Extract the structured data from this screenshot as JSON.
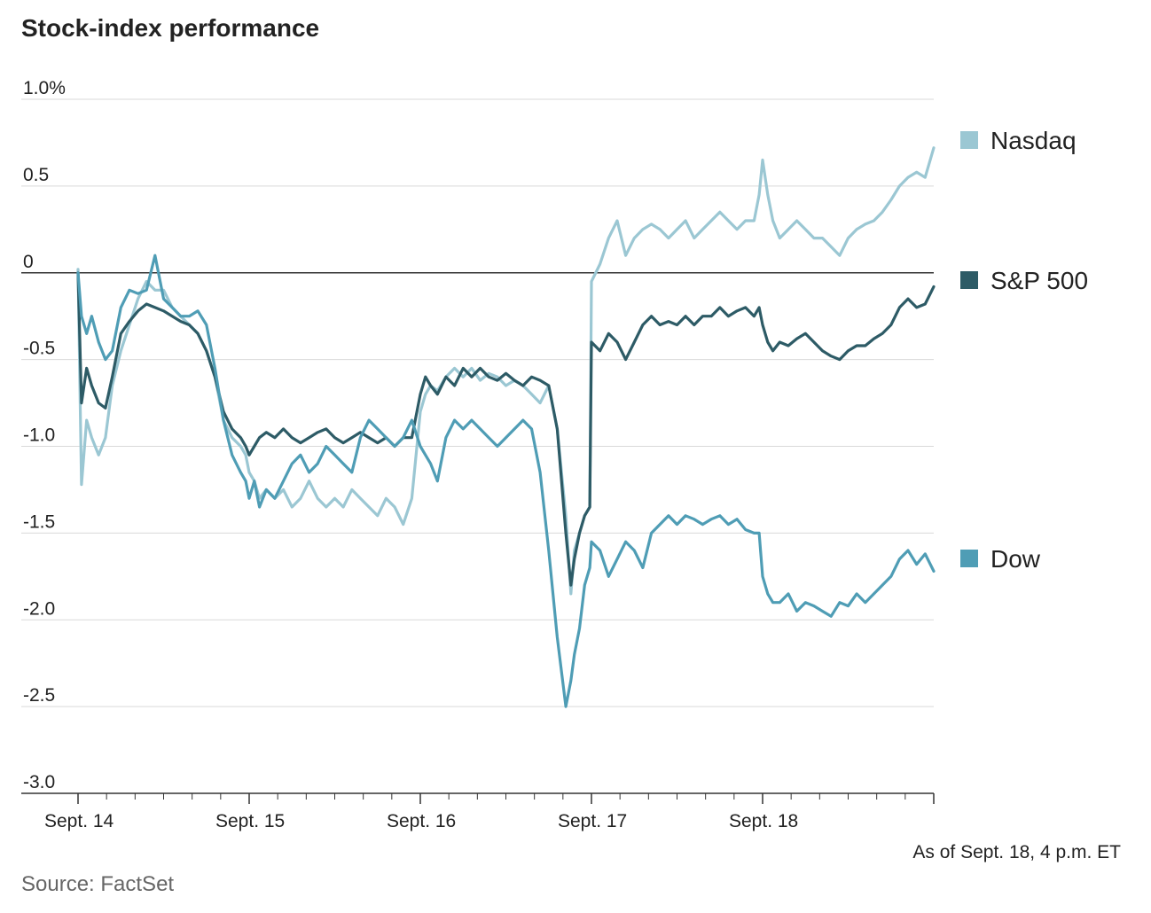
{
  "title": "Stock-index performance",
  "note": "As of Sept. 18, 4 p.m. ET",
  "source": "Source: FactSet",
  "chart_data": {
    "type": "line",
    "title": "Stock-index performance",
    "xlabel": "",
    "ylabel": "",
    "ylim": [
      -3.0,
      1.0
    ],
    "xlim": [
      0,
      5
    ],
    "y_ticks": [
      {
        "value": 1.0,
        "label": "1.0%"
      },
      {
        "value": 0.5,
        "label": "0.5"
      },
      {
        "value": 0,
        "label": "0"
      },
      {
        "value": -0.5,
        "label": "-0.5"
      },
      {
        "value": -1.0,
        "label": "-1.0"
      },
      {
        "value": -1.5,
        "label": "-1.5"
      },
      {
        "value": -2.0,
        "label": "-2.0"
      },
      {
        "value": -2.5,
        "label": "-2.5"
      },
      {
        "value": -3.0,
        "label": "-3.0"
      }
    ],
    "x_ticks": [
      {
        "value": 0,
        "label": "Sept. 14"
      },
      {
        "value": 1,
        "label": "Sept. 15"
      },
      {
        "value": 2,
        "label": "Sept. 16"
      },
      {
        "value": 3,
        "label": "Sept. 17"
      },
      {
        "value": 4,
        "label": "Sept. 18"
      }
    ],
    "grid": true,
    "legend_position": "right",
    "series": [
      {
        "name": "Nasdaq",
        "color": "#9bc7d3",
        "x": [
          0,
          0.02,
          0.05,
          0.08,
          0.12,
          0.16,
          0.2,
          0.25,
          0.3,
          0.35,
          0.4,
          0.45,
          0.5,
          0.55,
          0.6,
          0.65,
          0.7,
          0.75,
          0.8,
          0.85,
          0.9,
          0.95,
          0.98,
          1.0,
          1.03,
          1.06,
          1.1,
          1.15,
          1.2,
          1.25,
          1.3,
          1.35,
          1.4,
          1.45,
          1.5,
          1.55,
          1.6,
          1.65,
          1.7,
          1.75,
          1.8,
          1.85,
          1.9,
          1.95,
          2.0,
          2.03,
          2.06,
          2.1,
          2.15,
          2.2,
          2.25,
          2.3,
          2.35,
          2.4,
          2.45,
          2.5,
          2.55,
          2.6,
          2.65,
          2.7,
          2.75,
          2.8,
          2.85,
          2.88,
          2.9,
          2.93,
          2.96,
          2.99,
          3.0,
          3.05,
          3.1,
          3.15,
          3.2,
          3.25,
          3.3,
          3.35,
          3.4,
          3.45,
          3.5,
          3.55,
          3.6,
          3.65,
          3.7,
          3.75,
          3.8,
          3.85,
          3.9,
          3.95,
          3.98,
          4.0,
          4.03,
          4.06,
          4.1,
          4.15,
          4.2,
          4.25,
          4.3,
          4.35,
          4.4,
          4.45,
          4.5,
          4.55,
          4.6,
          4.65,
          4.7,
          4.75,
          4.8,
          4.85,
          4.9,
          4.95,
          5.0
        ],
        "y": [
          0.02,
          -1.22,
          -0.85,
          -0.95,
          -1.05,
          -0.95,
          -0.65,
          -0.45,
          -0.3,
          -0.15,
          -0.05,
          -0.1,
          -0.1,
          -0.2,
          -0.25,
          -0.3,
          -0.35,
          -0.45,
          -0.6,
          -0.85,
          -0.95,
          -1.0,
          -1.05,
          -1.15,
          -1.2,
          -1.3,
          -1.25,
          -1.3,
          -1.25,
          -1.35,
          -1.3,
          -1.2,
          -1.3,
          -1.35,
          -1.3,
          -1.35,
          -1.25,
          -1.3,
          -1.35,
          -1.4,
          -1.3,
          -1.35,
          -1.45,
          -1.3,
          -0.8,
          -0.7,
          -0.65,
          -0.68,
          -0.6,
          -0.55,
          -0.6,
          -0.55,
          -0.62,
          -0.58,
          -0.6,
          -0.65,
          -0.62,
          -0.65,
          -0.7,
          -0.75,
          -0.65,
          -0.9,
          -1.4,
          -1.85,
          -1.6,
          -1.5,
          -1.4,
          -1.35,
          -0.05,
          0.05,
          0.2,
          0.3,
          0.1,
          0.2,
          0.25,
          0.28,
          0.25,
          0.2,
          0.25,
          0.3,
          0.2,
          0.25,
          0.3,
          0.35,
          0.3,
          0.25,
          0.3,
          0.3,
          0.45,
          0.65,
          0.45,
          0.3,
          0.2,
          0.25,
          0.3,
          0.25,
          0.2,
          0.2,
          0.15,
          0.1,
          0.2,
          0.25,
          0.28,
          0.3,
          0.35,
          0.42,
          0.5,
          0.55,
          0.58,
          0.55,
          0.72
        ]
      },
      {
        "name": "S&P 500",
        "color": "#2d5b66",
        "x": [
          0,
          0.02,
          0.05,
          0.08,
          0.12,
          0.16,
          0.2,
          0.25,
          0.3,
          0.35,
          0.4,
          0.45,
          0.5,
          0.55,
          0.6,
          0.65,
          0.7,
          0.75,
          0.8,
          0.85,
          0.9,
          0.95,
          0.98,
          1.0,
          1.03,
          1.06,
          1.1,
          1.15,
          1.2,
          1.25,
          1.3,
          1.35,
          1.4,
          1.45,
          1.5,
          1.55,
          1.6,
          1.65,
          1.7,
          1.75,
          1.8,
          1.85,
          1.9,
          1.95,
          2.0,
          2.03,
          2.06,
          2.1,
          2.15,
          2.2,
          2.25,
          2.3,
          2.35,
          2.4,
          2.45,
          2.5,
          2.55,
          2.6,
          2.65,
          2.7,
          2.75,
          2.8,
          2.85,
          2.88,
          2.9,
          2.93,
          2.96,
          2.99,
          3.0,
          3.05,
          3.1,
          3.15,
          3.2,
          3.25,
          3.3,
          3.35,
          3.4,
          3.45,
          3.5,
          3.55,
          3.6,
          3.65,
          3.7,
          3.75,
          3.8,
          3.85,
          3.9,
          3.95,
          3.98,
          4.0,
          4.03,
          4.06,
          4.1,
          4.15,
          4.2,
          4.25,
          4.3,
          4.35,
          4.4,
          4.45,
          4.5,
          4.55,
          4.6,
          4.65,
          4.7,
          4.75,
          4.8,
          4.85,
          4.9,
          4.95,
          5.0
        ],
        "y": [
          0.0,
          -0.75,
          -0.55,
          -0.65,
          -0.75,
          -0.78,
          -0.6,
          -0.35,
          -0.28,
          -0.22,
          -0.18,
          -0.2,
          -0.22,
          -0.25,
          -0.28,
          -0.3,
          -0.35,
          -0.45,
          -0.6,
          -0.8,
          -0.9,
          -0.95,
          -1.0,
          -1.05,
          -1.0,
          -0.95,
          -0.92,
          -0.95,
          -0.9,
          -0.95,
          -0.98,
          -0.95,
          -0.92,
          -0.9,
          -0.95,
          -0.98,
          -0.95,
          -0.92,
          -0.95,
          -0.98,
          -0.95,
          -1.0,
          -0.95,
          -0.95,
          -0.7,
          -0.6,
          -0.65,
          -0.7,
          -0.6,
          -0.65,
          -0.55,
          -0.6,
          -0.55,
          -0.6,
          -0.62,
          -0.58,
          -0.62,
          -0.65,
          -0.6,
          -0.62,
          -0.65,
          -0.9,
          -1.5,
          -1.8,
          -1.65,
          -1.5,
          -1.4,
          -1.35,
          -0.4,
          -0.45,
          -0.35,
          -0.4,
          -0.5,
          -0.4,
          -0.3,
          -0.25,
          -0.3,
          -0.28,
          -0.3,
          -0.25,
          -0.3,
          -0.25,
          -0.25,
          -0.2,
          -0.25,
          -0.22,
          -0.2,
          -0.25,
          -0.2,
          -0.3,
          -0.4,
          -0.45,
          -0.4,
          -0.42,
          -0.38,
          -0.35,
          -0.4,
          -0.45,
          -0.48,
          -0.5,
          -0.45,
          -0.42,
          -0.42,
          -0.38,
          -0.35,
          -0.3,
          -0.2,
          -0.15,
          -0.2,
          -0.18,
          -0.08
        ]
      },
      {
        "name": "Dow",
        "color": "#4f9db5",
        "x": [
          0,
          0.02,
          0.05,
          0.08,
          0.12,
          0.16,
          0.2,
          0.25,
          0.3,
          0.35,
          0.4,
          0.45,
          0.5,
          0.55,
          0.6,
          0.65,
          0.7,
          0.75,
          0.8,
          0.85,
          0.9,
          0.95,
          0.98,
          1.0,
          1.03,
          1.06,
          1.1,
          1.15,
          1.2,
          1.25,
          1.3,
          1.35,
          1.4,
          1.45,
          1.5,
          1.55,
          1.6,
          1.65,
          1.7,
          1.75,
          1.8,
          1.85,
          1.9,
          1.95,
          2.0,
          2.03,
          2.06,
          2.1,
          2.15,
          2.2,
          2.25,
          2.3,
          2.35,
          2.4,
          2.45,
          2.5,
          2.55,
          2.6,
          2.65,
          2.7,
          2.75,
          2.8,
          2.85,
          2.88,
          2.9,
          2.93,
          2.96,
          2.99,
          3.0,
          3.05,
          3.1,
          3.15,
          3.2,
          3.25,
          3.3,
          3.35,
          3.4,
          3.45,
          3.5,
          3.55,
          3.6,
          3.65,
          3.7,
          3.75,
          3.8,
          3.85,
          3.9,
          3.95,
          3.98,
          4.0,
          4.03,
          4.06,
          4.1,
          4.15,
          4.2,
          4.25,
          4.3,
          4.35,
          4.4,
          4.45,
          4.5,
          4.55,
          4.6,
          4.65,
          4.7,
          4.75,
          4.8,
          4.85,
          4.9,
          4.95,
          5.0
        ],
        "y": [
          0.0,
          -0.25,
          -0.35,
          -0.25,
          -0.4,
          -0.5,
          -0.45,
          -0.2,
          -0.1,
          -0.12,
          -0.1,
          0.1,
          -0.15,
          -0.2,
          -0.25,
          -0.25,
          -0.22,
          -0.3,
          -0.55,
          -0.85,
          -1.05,
          -1.15,
          -1.2,
          -1.3,
          -1.2,
          -1.35,
          -1.25,
          -1.3,
          -1.2,
          -1.1,
          -1.05,
          -1.15,
          -1.1,
          -1.0,
          -1.05,
          -1.1,
          -1.15,
          -0.95,
          -0.85,
          -0.9,
          -0.95,
          -1.0,
          -0.95,
          -0.85,
          -1.0,
          -1.05,
          -1.1,
          -1.2,
          -0.95,
          -0.85,
          -0.9,
          -0.85,
          -0.9,
          -0.95,
          -1.0,
          -0.95,
          -0.9,
          -0.85,
          -0.9,
          -1.15,
          -1.6,
          -2.1,
          -2.5,
          -2.35,
          -2.2,
          -2.05,
          -1.8,
          -1.7,
          -1.55,
          -1.6,
          -1.75,
          -1.65,
          -1.55,
          -1.6,
          -1.7,
          -1.5,
          -1.45,
          -1.4,
          -1.45,
          -1.4,
          -1.42,
          -1.45,
          -1.42,
          -1.4,
          -1.45,
          -1.42,
          -1.48,
          -1.5,
          -1.5,
          -1.75,
          -1.85,
          -1.9,
          -1.9,
          -1.85,
          -1.95,
          -1.9,
          -1.92,
          -1.95,
          -1.98,
          -1.9,
          -1.92,
          -1.85,
          -1.9,
          -1.85,
          -1.8,
          -1.75,
          -1.65,
          -1.6,
          -1.68,
          -1.62,
          -1.72
        ]
      }
    ]
  }
}
